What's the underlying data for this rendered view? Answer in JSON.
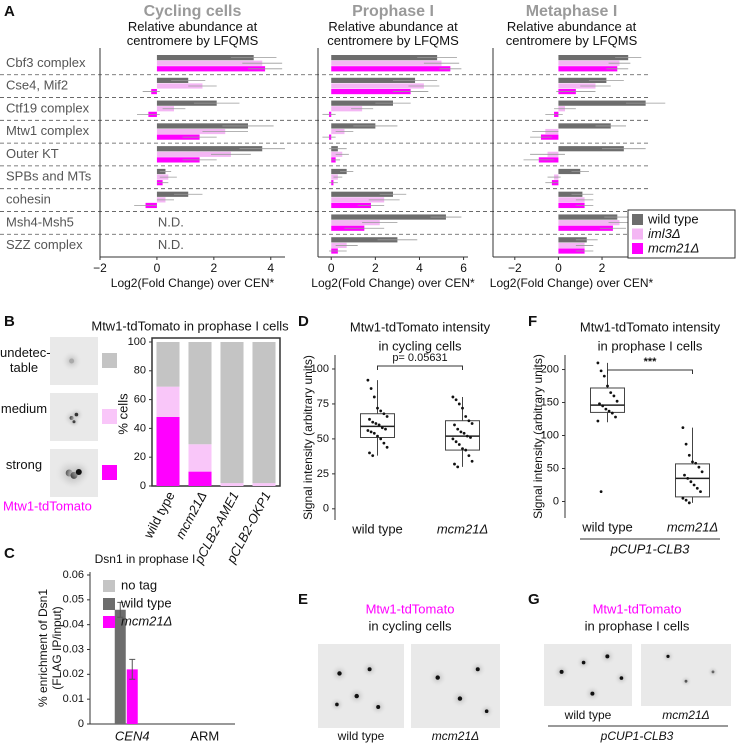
{
  "panel_labels": [
    "A",
    "B",
    "C",
    "D",
    "E",
    "F",
    "G"
  ],
  "chart_data": [
    {
      "type": "bar",
      "horizontal": true,
      "title": "Cycling cells",
      "subtitle": "Relative abundance at centromere by LFQMS",
      "xlabel": "Log2(Fold Change) over CEN*",
      "categories": [
        "Cbf3 complex",
        "Cse4, Mif2",
        "Ctf19 complex",
        "Mtw1 complex",
        "Outer KT",
        "SPBs and MTs",
        "cohesin",
        "Msh4-Msh5",
        "SZZ complex"
      ],
      "na_label": "N.D.",
      "xlim": [
        -2,
        4.5
      ],
      "xticks": [
        {
          "value": -2,
          "label": "−2"
        },
        0,
        2,
        4
      ],
      "series": [
        {
          "color": "#6d6d6d",
          "values": [
            3.4,
            1.1,
            2.1,
            3.2,
            3.7,
            0.3,
            1.1,
            null,
            null
          ],
          "errors": [
            0.8,
            0.6,
            0.8,
            0.9,
            0.8,
            0.2,
            0.5,
            null,
            null
          ]
        },
        {
          "color": "#f4b6f4",
          "values": [
            3.7,
            1.6,
            0.6,
            2.4,
            2.6,
            0.4,
            0.3,
            null,
            null
          ],
          "errors": [
            0.7,
            0.5,
            0.4,
            0.8,
            0.7,
            0.3,
            0.3,
            null,
            null
          ]
        },
        {
          "color": "#ff00ff",
          "values": [
            3.8,
            -0.2,
            -0.3,
            1.5,
            1.5,
            0.2,
            -0.4,
            null,
            null
          ],
          "errors": [
            0.6,
            0.3,
            0.4,
            0.6,
            0.6,
            0.2,
            0.4,
            null,
            null
          ]
        }
      ]
    },
    {
      "type": "bar",
      "horizontal": true,
      "title": "Prophase I",
      "subtitle": "Relative abundance at centromere by LFQMS",
      "xlabel": "Log2(Fold Change) over CEN*",
      "xlim": [
        -0.6,
        6.2
      ],
      "xticks": [
        0,
        2,
        4,
        6
      ],
      "series": [
        {
          "color": "#6d6d6d",
          "values": [
            4.8,
            3.8,
            2.8,
            2.0,
            0.3,
            0.7,
            2.8,
            5.2,
            3.0
          ],
          "errors": [
            0.9,
            1.0,
            0.8,
            1.0,
            0.4,
            0.3,
            0.6,
            0.7,
            0.9
          ]
        },
        {
          "color": "#f4b6f4",
          "values": [
            5.0,
            4.2,
            1.4,
            0.6,
            0.5,
            0.3,
            2.4,
            2.2,
            0.7
          ],
          "errors": [
            0.8,
            0.7,
            0.5,
            0.4,
            0.3,
            0.2,
            0.7,
            0.8,
            0.5
          ]
        },
        {
          "color": "#ff00ff",
          "values": [
            5.4,
            3.6,
            -0.1,
            -0.1,
            0.2,
            0.1,
            1.8,
            1.5,
            0.3
          ],
          "errors": [
            0.5,
            0.8,
            0.3,
            0.3,
            0.2,
            0.2,
            0.6,
            0.9,
            0.4
          ]
        }
      ]
    },
    {
      "type": "bar",
      "horizontal": true,
      "title": "Metaphase I",
      "subtitle": "Relative abundance at centromere by LFQMS",
      "xlabel": "Log2(Fold Change) over CEN*",
      "xlim": [
        -3,
        4.2
      ],
      "xticks": [
        {
          "value": -2,
          "label": "−2"
        },
        0,
        2
      ],
      "legend": "lower right",
      "series": [
        {
          "name": "wild type",
          "color": "#6d6d6d",
          "values": [
            3.2,
            2.2,
            4.0,
            2.4,
            3.0,
            1.0,
            1.1,
            2.7,
            1.3
          ],
          "errors": [
            0.6,
            0.8,
            0.9,
            0.7,
            1.0,
            0.4,
            0.5,
            0.6,
            0.5
          ]
        },
        {
          "name": "iml3Δ",
          "color": "#f4b6f4",
          "values": [
            2.8,
            1.7,
            0.3,
            -0.6,
            -0.5,
            -0.2,
            1.2,
            2.8,
            1.2
          ],
          "errors": [
            0.5,
            0.7,
            0.5,
            0.6,
            0.8,
            0.3,
            0.4,
            0.5,
            0.4
          ]
        },
        {
          "name": "mcm21Δ",
          "color": "#ff00ff",
          "values": [
            2.7,
            0.8,
            -0.2,
            -0.8,
            -0.9,
            -0.3,
            1.2,
            2.5,
            1.2
          ],
          "errors": [
            0.5,
            0.9,
            0.4,
            0.5,
            0.7,
            0.3,
            0.4,
            0.6,
            0.4
          ]
        }
      ]
    },
    {
      "type": "bar",
      "stacked": true,
      "title": "Mtw1-tdTomato in prophase I cells",
      "ylabel": "% cells",
      "image_label": "Mtw1-tdTomato",
      "categories": [
        "wild type",
        "mcm21Δ",
        "pCLB2-AME1",
        "pCLB2-OKP1"
      ],
      "ylim": [
        0,
        100
      ],
      "yticks": [
        0,
        20,
        40,
        60,
        80,
        100
      ],
      "series": [
        {
          "name": "strong",
          "color": "#ff00ff",
          "values": [
            48,
            10,
            0,
            0
          ]
        },
        {
          "name": "medium",
          "color": "#f9c6f9",
          "values": [
            21,
            19,
            2,
            2
          ]
        },
        {
          "name": "undetec-table",
          "color": "#c4c4c4",
          "values": [
            31,
            71,
            98,
            98
          ]
        }
      ]
    },
    {
      "type": "bar",
      "title": "Dsn1 in prophase I",
      "ylabel": "% enrichment of Dsn1 (FLAG IP/input)",
      "categories": [
        "CEN4",
        "ARM"
      ],
      "ylim": [
        0,
        0.06
      ],
      "yticks": [
        0,
        0.01,
        0.02,
        0.03,
        0.04,
        0.05,
        0.06
      ],
      "legend": "upper right",
      "series": [
        {
          "name": "no tag",
          "color": "#c4c4c4",
          "values": [
            0,
            0
          ]
        },
        {
          "name": "wild type",
          "color": "#6d6d6d",
          "values": [
            0.046,
            0
          ],
          "errors": [
            0.003,
            null
          ]
        },
        {
          "name": "mcm21Δ",
          "color": "#ff00ff",
          "values": [
            0.022,
            0
          ],
          "errors": [
            0.004,
            null
          ]
        }
      ]
    },
    {
      "type": "box",
      "title": "Mtw1-tdTomato intensity",
      "subtitle": "in cycling cells",
      "ylabel": "Signal intensity (arbitrary units)",
      "annotation": "p= 0.05631",
      "categories": [
        "wild type",
        "mcm21Δ"
      ],
      "ylim": [
        -8,
        110
      ],
      "yticks": [
        0,
        25,
        50,
        75,
        100
      ],
      "boxes": [
        {
          "low": 38,
          "q1": 51,
          "median": 59,
          "q3": 68,
          "high": 92
        },
        {
          "low": 30,
          "q1": 42,
          "median": 52,
          "q3": 63,
          "high": 80
        }
      ],
      "points": [
        [
          92,
          86,
          80,
          72,
          70,
          68,
          66,
          64,
          62,
          61,
          60,
          58,
          57,
          56,
          55,
          54,
          52,
          50,
          47,
          44,
          40,
          38
        ],
        [
          80,
          78,
          75,
          72,
          66,
          63,
          61,
          60,
          57,
          55,
          54,
          52,
          51,
          50,
          48,
          46,
          43,
          42,
          38,
          34,
          32,
          30
        ]
      ]
    },
    {
      "type": "box",
      "title": "Mtw1-tdTomato intensity",
      "subtitle": "in prophase I cells",
      "ylabel": "Signal intensity (arbitrary units)",
      "annotation": "***",
      "xgroup_label": "pCUP1-CLB3",
      "categories": [
        "wild type",
        "mcm21Δ"
      ],
      "ylim": [
        -25,
        222
      ],
      "yticks": [
        0,
        50,
        100,
        150,
        200
      ],
      "boxes": [
        {
          "low": 120,
          "q1": 135,
          "median": 146,
          "q3": 172,
          "high": 210
        },
        {
          "low": -2,
          "q1": 7,
          "median": 35,
          "q3": 57,
          "high": 112
        }
      ],
      "points": [
        [
          210,
          198,
          190,
          175,
          165,
          160,
          152,
          148,
          145,
          140,
          137,
          134,
          128,
          122,
          15
        ],
        [
          112,
          87,
          70,
          60,
          58,
          52,
          45,
          40,
          35,
          30,
          25,
          20,
          15,
          5,
          2,
          -2
        ]
      ]
    }
  ],
  "micrographs": [
    {
      "title": "Mtw1-tdTomato",
      "subtitle": "in cycling cells",
      "labels": [
        "wild type",
        "mcm21Δ"
      ]
    },
    {
      "title": "Mtw1-tdTomato",
      "subtitle": "in prophase I cells",
      "labels": [
        "wild type",
        "mcm21Δ"
      ],
      "group_label": "pCUP1-CLB3"
    }
  ]
}
